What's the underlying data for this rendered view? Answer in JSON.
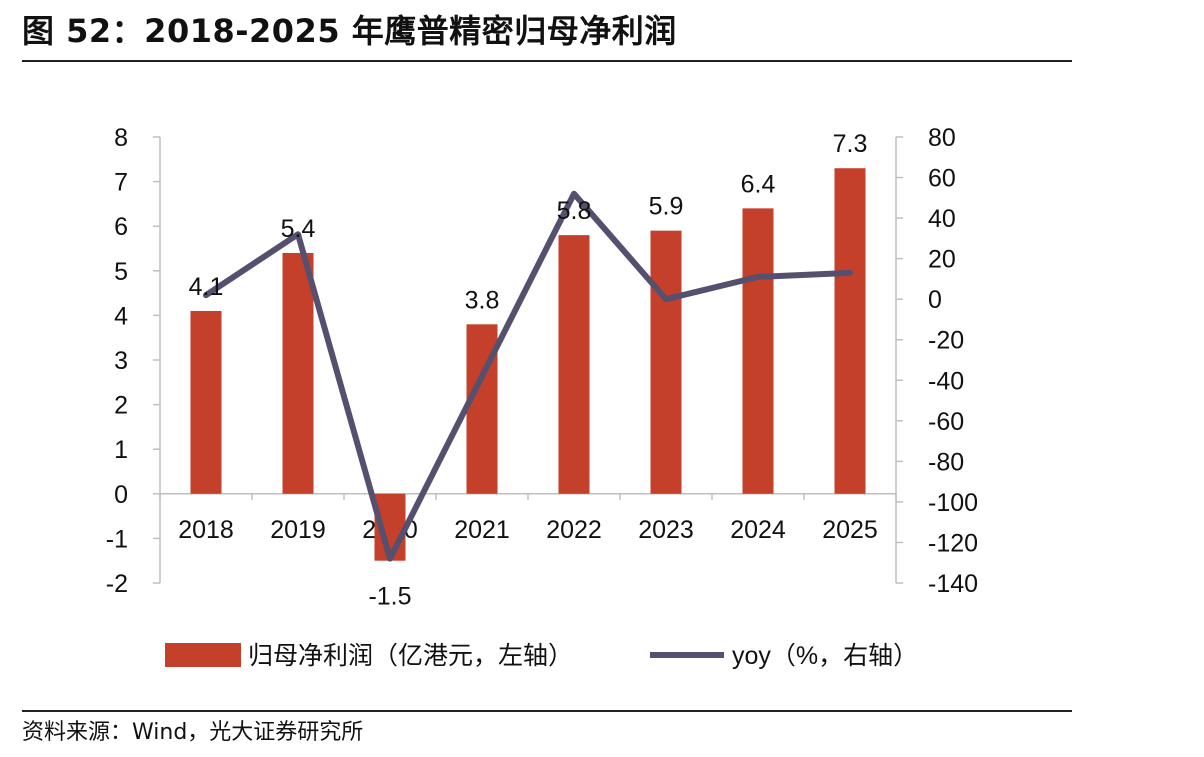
{
  "title": "图 52：2018-2025 年鹰普精密归母净利润",
  "source": "资料来源：Wind，光大证券研究所",
  "chart_data": {
    "type": "bar",
    "categories": [
      "2018",
      "2019",
      "2020",
      "2021",
      "2022",
      "2023",
      "2024",
      "2025"
    ],
    "series": [
      {
        "name": "归母净利润（亿港元，左轴）",
        "type": "bar",
        "axis": "left",
        "color": "#C4402A",
        "values": [
          4.1,
          5.4,
          -1.5,
          3.8,
          5.8,
          5.9,
          6.4,
          7.3
        ],
        "labels": [
          "4.1",
          "5.4",
          "-1.5",
          "3.8",
          "5.8",
          "5.9",
          "6.4",
          "7.3"
        ]
      },
      {
        "name": "yoy（%，右轴）",
        "type": "line",
        "axis": "right",
        "color": "#55506E",
        "values": [
          2,
          32,
          -128,
          null,
          52,
          0,
          11,
          13
        ]
      }
    ],
    "y_left": {
      "min": -2,
      "max": 8,
      "ticks": [
        "8",
        "7",
        "6",
        "5",
        "4",
        "3",
        "2",
        "1",
        "0",
        "-1",
        "-2"
      ]
    },
    "y_right": {
      "min": -140,
      "max": 80,
      "ticks": [
        "80",
        "60",
        "40",
        "20",
        "0",
        "-20",
        "-40",
        "-60",
        "-80",
        "-100",
        "-120",
        "-140"
      ]
    },
    "grid": false,
    "legend_position": "bottom"
  }
}
